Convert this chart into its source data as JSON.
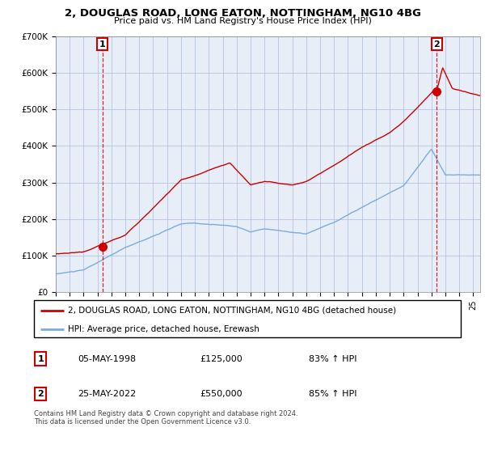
{
  "title": "2, DOUGLAS ROAD, LONG EATON, NOTTINGHAM, NG10 4BG",
  "subtitle": "Price paid vs. HM Land Registry's House Price Index (HPI)",
  "legend_line1": "2, DOUGLAS ROAD, LONG EATON, NOTTINGHAM, NG10 4BG (detached house)",
  "legend_line2": "HPI: Average price, detached house, Erewash",
  "sale1_date": "05-MAY-1998",
  "sale1_price": "£125,000",
  "sale1_hpi": "83% ↑ HPI",
  "sale2_date": "25-MAY-2022",
  "sale2_price": "£550,000",
  "sale2_hpi": "85% ↑ HPI",
  "footer": "Contains HM Land Registry data © Crown copyright and database right 2024.\nThis data is licensed under the Open Government Licence v3.0.",
  "sale_color": "#cc0000",
  "hpi_color": "#7aacdc",
  "dashed_line_color": "#cc0000",
  "chart_bg": "#e8eef8",
  "ylim": [
    0,
    700000
  ],
  "yticks": [
    0,
    100000,
    200000,
    300000,
    400000,
    500000,
    600000,
    700000
  ],
  "ytick_labels": [
    "£0",
    "£100K",
    "£200K",
    "£300K",
    "£400K",
    "£500K",
    "£600K",
    "£700K"
  ],
  "sale1_year": 1998.35,
  "sale2_year": 2022.38,
  "sale1_value": 125000,
  "sale2_value": 550000,
  "grid_color": "#aabbdd"
}
